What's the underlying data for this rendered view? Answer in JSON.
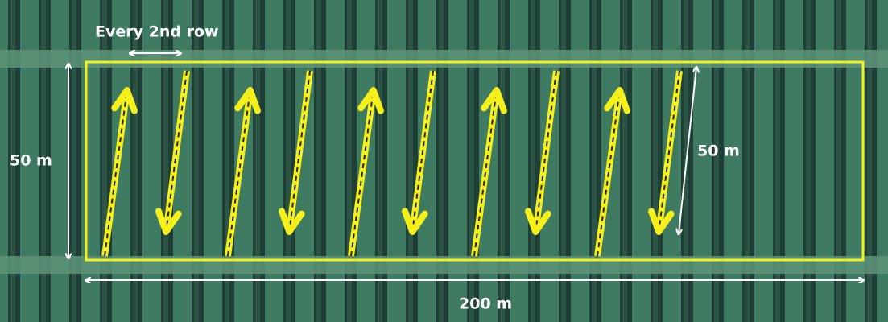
{
  "annotations": {
    "row_spacing": "Every 2nd row",
    "field_height": "50 m",
    "pass_length": "50 m",
    "field_width": "200 m"
  }
}
